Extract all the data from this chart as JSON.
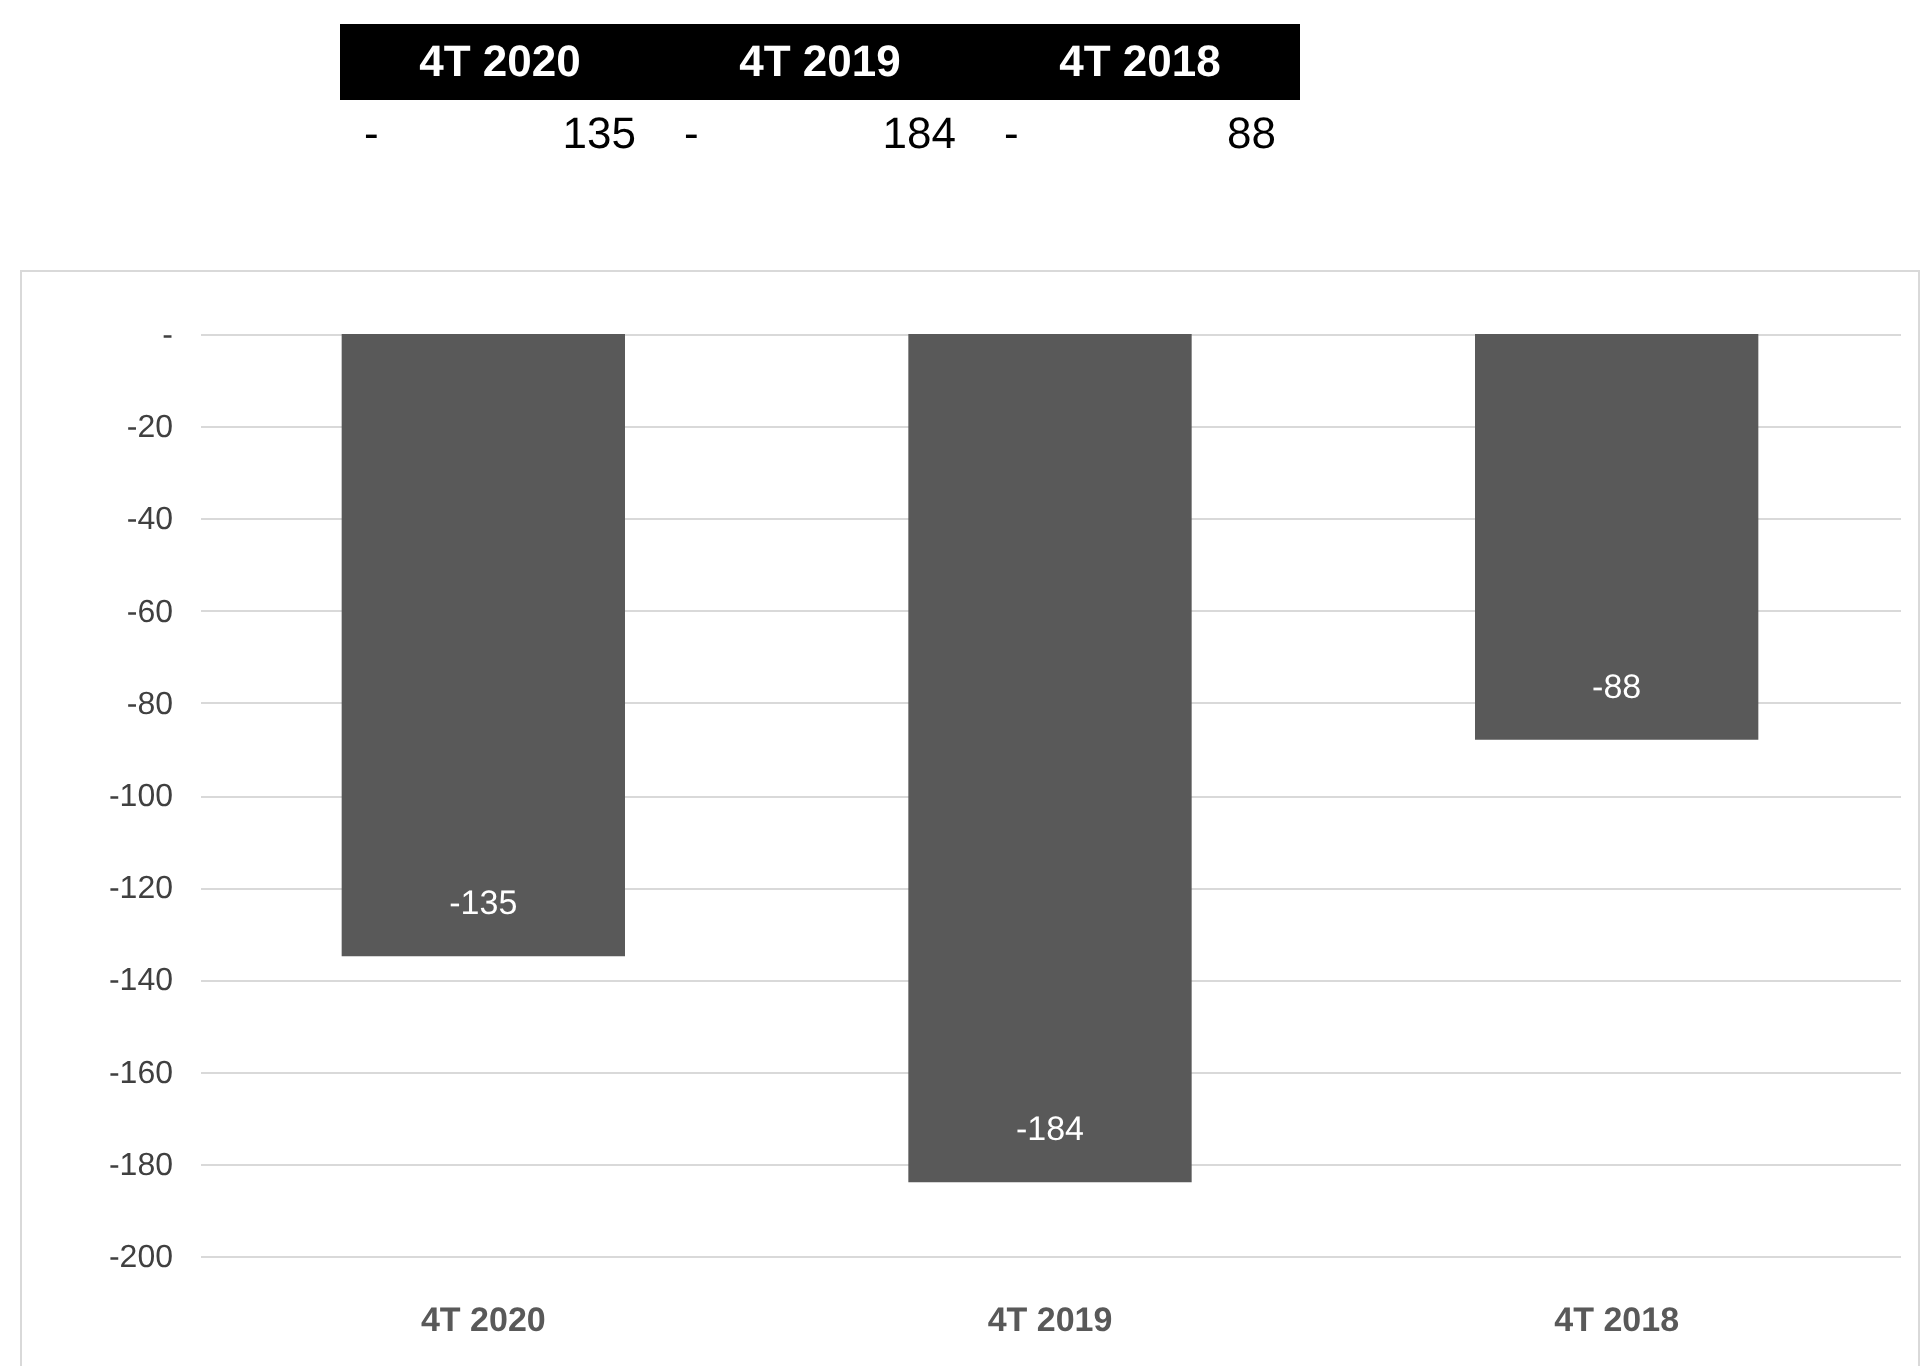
{
  "chart_data": {
    "type": "bar",
    "categories": [
      "4T 2020",
      "4T 2019",
      "4T 2018"
    ],
    "values": [
      -135,
      -184,
      -88
    ],
    "color": "#595959",
    "ylim": [
      -200,
      0
    ],
    "yticks": [
      {
        "value": 0,
        "label": "-"
      },
      -20,
      -40,
      -60,
      -80,
      -100,
      -120,
      -140,
      -160,
      -180,
      -200
    ],
    "grid": "y",
    "data_labels": true,
    "annotations": [
      "-",
      "135",
      "-",
      "184",
      "-",
      "88"
    ]
  }
}
